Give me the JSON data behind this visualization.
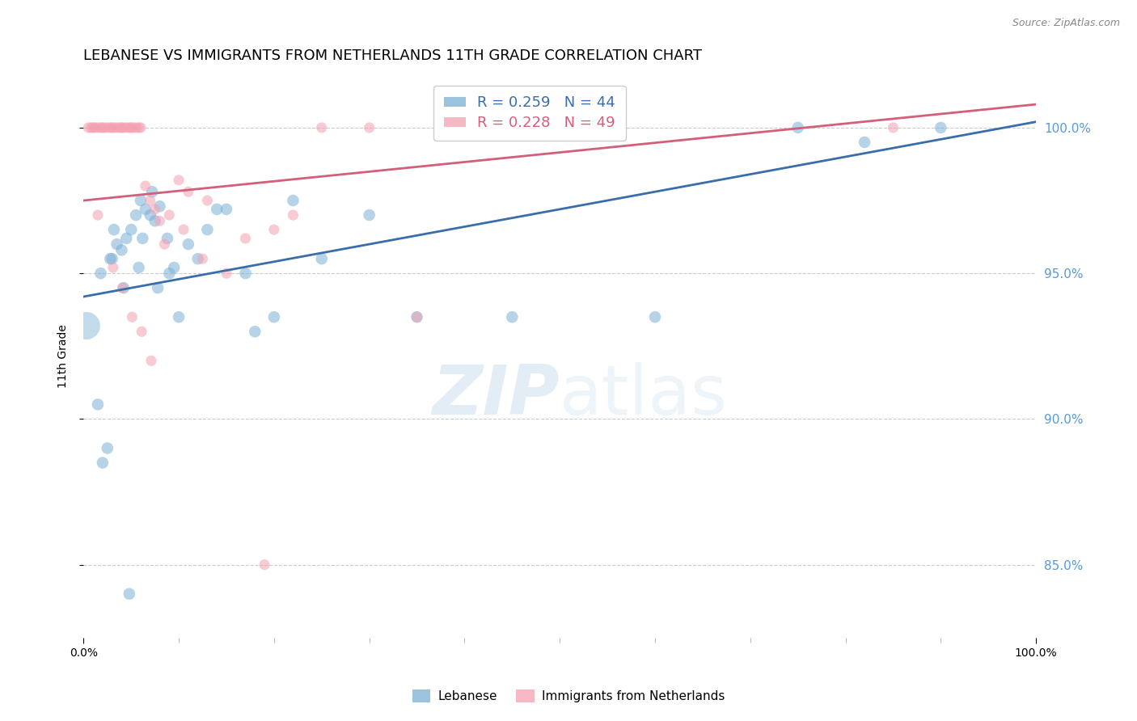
{
  "title": "LEBANESE VS IMMIGRANTS FROM NETHERLANDS 11TH GRADE CORRELATION CHART",
  "source": "Source: ZipAtlas.com",
  "ylabel": "11th Grade",
  "watermark_zip": "ZIP",
  "watermark_atlas": "atlas",
  "xlim": [
    0.0,
    100.0
  ],
  "ylim": [
    82.5,
    101.8
  ],
  "yticks": [
    85.0,
    90.0,
    95.0,
    100.0
  ],
  "xticks": [
    0.0,
    100.0
  ],
  "xtick_labels": [
    "0.0%",
    "100.0%"
  ],
  "blue_R": 0.259,
  "blue_N": 44,
  "pink_R": 0.228,
  "pink_N": 49,
  "blue_color": "#7bafd4",
  "pink_color": "#f4a0b0",
  "blue_line_color": "#3a6eaa",
  "pink_line_color": "#d45f7a",
  "legend_blue_label": "Lebanese",
  "legend_pink_label": "Immigrants from Netherlands",
  "blue_scatter_x": [
    1.5,
    2.0,
    2.5,
    3.0,
    3.5,
    4.0,
    4.5,
    5.0,
    5.5,
    6.0,
    6.5,
    7.0,
    7.5,
    8.0,
    9.0,
    10.0,
    11.0,
    13.0,
    15.0,
    18.0,
    20.0,
    22.0,
    25.0,
    30.0,
    2.8,
    4.2,
    5.8,
    7.2,
    8.8,
    14.0,
    1.8,
    3.2,
    4.8,
    6.2,
    7.8,
    9.5,
    12.0,
    17.0,
    35.0,
    45.0,
    60.0,
    75.0,
    82.0,
    90.0
  ],
  "blue_scatter_y": [
    90.5,
    88.5,
    89.0,
    95.5,
    96.0,
    95.8,
    96.2,
    96.5,
    97.0,
    97.5,
    97.2,
    97.0,
    96.8,
    97.3,
    95.0,
    93.5,
    96.0,
    96.5,
    97.2,
    93.0,
    93.5,
    97.5,
    95.5,
    97.0,
    95.5,
    94.5,
    95.2,
    97.8,
    96.2,
    97.2,
    95.0,
    96.5,
    84.0,
    96.2,
    94.5,
    95.2,
    95.5,
    95.0,
    93.5,
    93.5,
    93.5,
    100.0,
    99.5,
    100.0
  ],
  "pink_scatter_x": [
    0.5,
    0.8,
    1.0,
    1.2,
    1.5,
    1.8,
    2.0,
    2.2,
    2.5,
    2.8,
    3.0,
    3.2,
    3.5,
    3.8,
    4.0,
    4.2,
    4.5,
    4.8,
    5.0,
    5.2,
    5.5,
    5.8,
    6.0,
    6.5,
    7.0,
    7.5,
    8.0,
    9.0,
    10.0,
    11.0,
    13.0,
    15.0,
    17.0,
    20.0,
    22.0,
    25.0,
    30.0,
    1.5,
    3.1,
    4.1,
    5.1,
    6.1,
    7.1,
    8.5,
    10.5,
    12.5,
    19.0,
    35.0,
    85.0
  ],
  "pink_scatter_y": [
    100.0,
    100.0,
    100.0,
    100.0,
    100.0,
    100.0,
    100.0,
    100.0,
    100.0,
    100.0,
    100.0,
    100.0,
    100.0,
    100.0,
    100.0,
    100.0,
    100.0,
    100.0,
    100.0,
    100.0,
    100.0,
    100.0,
    100.0,
    98.0,
    97.5,
    97.2,
    96.8,
    97.0,
    98.2,
    97.8,
    97.5,
    95.0,
    96.2,
    96.5,
    97.0,
    100.0,
    100.0,
    97.0,
    95.2,
    94.5,
    93.5,
    93.0,
    92.0,
    96.0,
    96.5,
    95.5,
    85.0,
    93.5,
    100.0
  ],
  "blue_trend_x": [
    0.0,
    100.0
  ],
  "blue_trend_y_start": 94.2,
  "blue_trend_y_end": 100.2,
  "pink_trend_x": [
    0.0,
    100.0
  ],
  "pink_trend_y_start": 97.5,
  "pink_trend_y_end": 100.8,
  "blue_marker_size": 110,
  "pink_marker_size": 90,
  "big_blue_x": 0.3,
  "big_blue_y": 93.2,
  "big_blue_size": 600,
  "grid_color": "#cccccc",
  "bg_color": "#ffffff",
  "right_axis_color": "#5a9ad5",
  "title_fontsize": 13,
  "label_fontsize": 10,
  "tick_fontsize": 10
}
